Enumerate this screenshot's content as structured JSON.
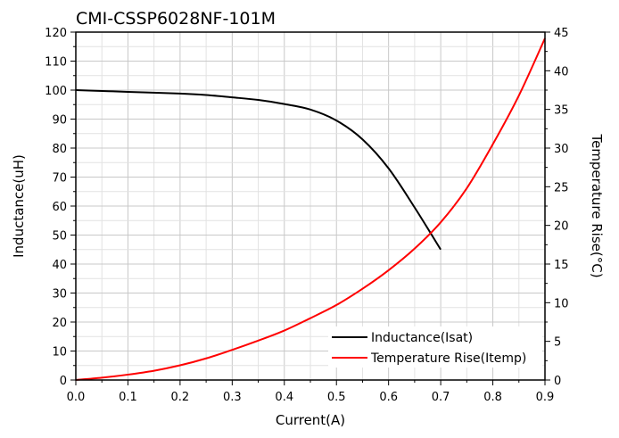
{
  "chart_data": {
    "type": "line",
    "title": "CMI-CSSP6028NF-101M",
    "xlabel": "Current(A)",
    "ylabel_left": "Inductance(uH)",
    "ylabel_right": "Temperature Rise(°C)",
    "xlim": [
      0,
      0.9
    ],
    "ylim_left": [
      0,
      120
    ],
    "ylim_right": [
      0,
      45
    ],
    "x_ticks": [
      "0.0",
      "0.1",
      "0.2",
      "0.3",
      "0.4",
      "0.5",
      "0.6",
      "0.7",
      "0.8",
      "0.9"
    ],
    "y_left_ticks": [
      "0",
      "10",
      "20",
      "30",
      "40",
      "50",
      "60",
      "70",
      "80",
      "90",
      "100",
      "110",
      "120"
    ],
    "y_right_ticks": [
      "0",
      "5",
      "10",
      "15",
      "20",
      "25",
      "30",
      "35",
      "40",
      "45"
    ],
    "grid": true,
    "legend_position": "bottom-right",
    "series": [
      {
        "name": "Inductance(Isat)",
        "axis": "left",
        "color": "#000000",
        "x": [
          0,
          0.1,
          0.2,
          0.25,
          0.3,
          0.35,
          0.4,
          0.45,
          0.5,
          0.55,
          0.6,
          0.65,
          0.7
        ],
        "y": [
          100,
          99.4,
          98.8,
          98.3,
          97.5,
          96.6,
          95.2,
          93.3,
          89.5,
          83,
          73,
          59.5,
          45
        ]
      },
      {
        "name": "Temperature Rise(Itemp)",
        "axis": "right",
        "color": "#ff0000",
        "x": [
          0,
          0.05,
          0.1,
          0.15,
          0.2,
          0.25,
          0.3,
          0.35,
          0.4,
          0.45,
          0.5,
          0.55,
          0.6,
          0.65,
          0.7,
          0.75,
          0.8,
          0.85,
          0.9
        ],
        "y": [
          0,
          0.3,
          0.7,
          1.2,
          1.9,
          2.8,
          3.9,
          5.1,
          6.4,
          8,
          9.7,
          11.8,
          14.2,
          17,
          20.4,
          24.8,
          30.5,
          36.8,
          44.2
        ]
      }
    ]
  }
}
